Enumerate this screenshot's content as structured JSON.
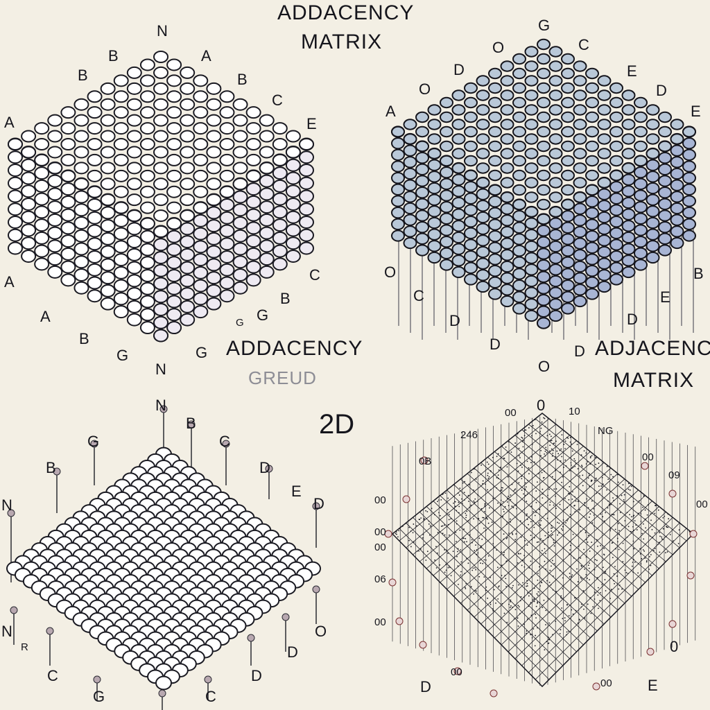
{
  "texts": {
    "title_top_1": "ADDACENCY",
    "title_top_2": "MATRIX",
    "title_mid_left_1": "ADDACENCY",
    "title_mid_left_2": "GREUD",
    "title_mid_right_1": "ADJACENCY",
    "title_mid_right_2": "MATRIX",
    "center_label": "2D"
  },
  "panels": [
    {
      "name": "top-left-cube",
      "node_color": "#ffffff",
      "labels": [
        "N",
        "A",
        "B",
        "B",
        "B",
        "C",
        "A",
        "E",
        "A",
        "C",
        "A",
        "B",
        "B",
        "G",
        "G",
        "N",
        "G",
        "G"
      ]
    },
    {
      "name": "top-right-cube",
      "node_color": "#b9c8d8",
      "labels": [
        "G",
        "O",
        "C",
        "D",
        "E",
        "O",
        "D",
        "A",
        "E",
        "O",
        "C",
        "D",
        "C",
        "B",
        "E",
        "D",
        "D",
        "O",
        "D"
      ]
    },
    {
      "name": "bottom-left-lattice",
      "node_color": "#ffffff",
      "labels": [
        "N",
        "B",
        "G",
        "C",
        "B",
        "D",
        "E",
        "D",
        "N",
        "N",
        "R",
        "C",
        "D",
        "D",
        "O",
        "G",
        "C"
      ]
    },
    {
      "name": "bottom-right-grid",
      "node_color": "#1a1a22",
      "labels": [
        "00",
        "0",
        "10",
        "246",
        "NG",
        "0B",
        "00",
        "00",
        "09",
        "00",
        "00",
        "06",
        "00",
        "00",
        "0",
        "D",
        "E",
        "00",
        "00"
      ]
    }
  ]
}
